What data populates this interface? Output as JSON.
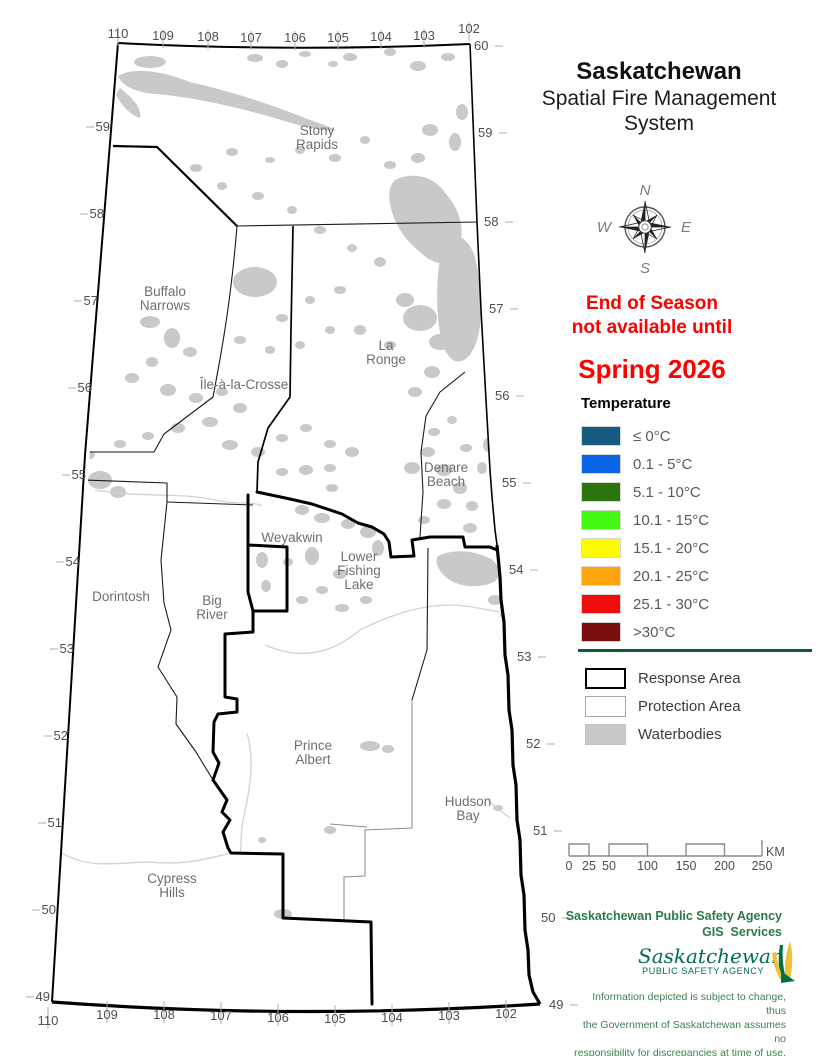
{
  "title": {
    "name": "Saskatchewan",
    "line2": "Spatial Fire Management",
    "line3": "System"
  },
  "notice": {
    "line1": "End of Season",
    "line2": "not available until",
    "line3": "Spring 2026",
    "color": "#FF0000"
  },
  "compass": {
    "north": "N",
    "east": "E",
    "south": "S",
    "west": "W"
  },
  "temperature_legend": {
    "title": "Temperature",
    "items": [
      {
        "label": "≤ 0°C",
        "color": "#175B80"
      },
      {
        "label": "0.1 - 5°C",
        "color": "#0B63E6"
      },
      {
        "label": "5.1 - 10°C",
        "color": "#2E750E"
      },
      {
        "label": "10.1 - 15°C",
        "color": "#44FA12"
      },
      {
        "label": "15.1 - 20°C",
        "color": "#FFFB00"
      },
      {
        "label": "20.1 - 25°C",
        "color": "#FFA40B"
      },
      {
        "label": "25.1 - 30°C",
        "color": "#F20D0D"
      },
      {
        "label": ">30°C",
        "color": "#7B0C0C"
      }
    ]
  },
  "area_legend": {
    "items": [
      {
        "label": "Response Area",
        "swatch": "response"
      },
      {
        "label": "Protection Area",
        "swatch": "protection"
      },
      {
        "label": "Waterbodies",
        "swatch": "waterbody"
      }
    ],
    "waterbody_color": "#C9C9C9"
  },
  "scale_bar": {
    "tick_labels": [
      "0",
      "25",
      "50",
      "100",
      "150",
      "200",
      "250"
    ],
    "unit": "KM"
  },
  "agency": {
    "header_line1": "Saskatchewan Public Safety Agency",
    "header_line2": "GIS  Services",
    "logo_text": "Saskatchewan",
    "logo_subtext": "PUBLIC SAFETY AGENCY",
    "disclaimer_lines": [
      "Information depicted is subject to change, thus",
      "the Government of Saskatchewan assumes no",
      "responsibility for discrepancies at time of use."
    ]
  },
  "map": {
    "place_labels": [
      {
        "lines": [
          "Stony",
          "Rapids"
        ]
      },
      {
        "lines": [
          "Buffalo",
          "Narrows"
        ]
      },
      {
        "lines": [
          "Île-à-la-Crosse"
        ]
      },
      {
        "lines": [
          "La",
          "Ronge"
        ]
      },
      {
        "lines": [
          "Denare",
          "Beach"
        ]
      },
      {
        "lines": [
          "Weyakwin"
        ]
      },
      {
        "lines": [
          "Lower",
          "Fishing",
          "Lake"
        ]
      },
      {
        "lines": [
          "Dorintosh"
        ]
      },
      {
        "lines": [
          "Big",
          "River"
        ]
      },
      {
        "lines": [
          "Prince",
          "Albert"
        ]
      },
      {
        "lines": [
          "Hudson",
          "Bay"
        ]
      },
      {
        "lines": [
          "Cypress",
          "Hills"
        ]
      }
    ],
    "lat_labels_left": [
      "59",
      "58",
      "57",
      "56",
      "55",
      "54",
      "53",
      "52",
      "51",
      "50",
      "49"
    ],
    "lat_labels_right": [
      "60",
      "59",
      "58",
      "57",
      "56",
      "55",
      "54",
      "53",
      "52",
      "51",
      "50",
      "49"
    ],
    "lon_labels_top": [
      "110",
      "109",
      "108",
      "107",
      "106",
      "105",
      "104",
      "103",
      "102"
    ],
    "lon_labels_bottom": [
      "110",
      "109",
      "108",
      "107",
      "106",
      "105",
      "104",
      "103",
      "102"
    ]
  }
}
